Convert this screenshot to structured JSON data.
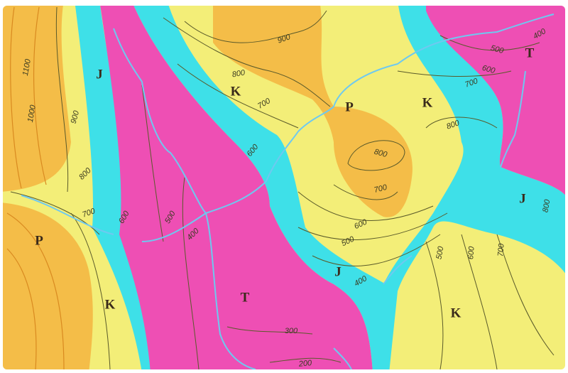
{
  "units": [
    {
      "label": "P"
    },
    {
      "label": "K"
    },
    {
      "label": "J"
    },
    {
      "label": "K"
    },
    {
      "label": "T"
    },
    {
      "label": "J"
    },
    {
      "label": "P"
    },
    {
      "label": "K"
    },
    {
      "label": "T"
    },
    {
      "label": "J"
    },
    {
      "label": "K"
    }
  ],
  "contours": [
    {
      "label": "1100"
    },
    {
      "label": "1000"
    },
    {
      "label": "900"
    },
    {
      "label": "800"
    },
    {
      "label": "700"
    },
    {
      "label": "600"
    },
    {
      "label": "500"
    },
    {
      "label": "400"
    },
    {
      "label": "900"
    },
    {
      "label": "800"
    },
    {
      "label": "700"
    },
    {
      "label": "600"
    },
    {
      "label": "800"
    },
    {
      "label": "700"
    },
    {
      "label": "600"
    },
    {
      "label": "500"
    },
    {
      "label": "400"
    },
    {
      "label": "300"
    },
    {
      "label": "200"
    },
    {
      "label": "800"
    },
    {
      "label": "700"
    },
    {
      "label": "600"
    },
    {
      "label": "500"
    },
    {
      "label": "400"
    },
    {
      "label": "500"
    },
    {
      "label": "600"
    },
    {
      "label": "700"
    },
    {
      "label": "800"
    }
  ]
}
